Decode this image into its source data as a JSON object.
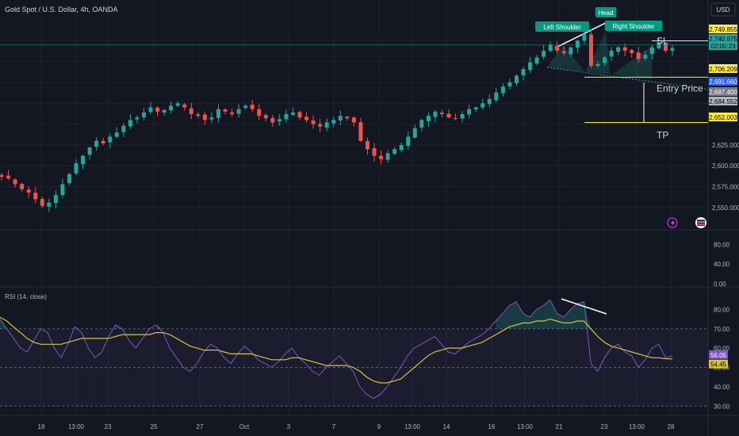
{
  "header": {
    "symbol_title": "Gold Spot / U.S. Dollar, 4h, OANDA",
    "currency_button": "USD"
  },
  "colors": {
    "background": "#131722",
    "up": "#26a69a",
    "down": "#ef5350",
    "grid": "#1e222d",
    "annotation": "#ffeb3b",
    "rsi_line": "#7e57c2",
    "rsi_ma": "#d4c53a",
    "label_green": "#089981"
  },
  "chart_data": [
    {
      "type": "candlestick",
      "title": "Gold Spot / U.S. Dollar, 4h, OANDA",
      "ylim": [
        2528,
        2775
      ],
      "yticks": [
        2550,
        2575,
        2600,
        2625
      ],
      "x_tick_labels": [
        "18",
        "13:00",
        "23",
        "25",
        "27",
        "Oct",
        "3",
        "7",
        "9",
        "13:00",
        "14",
        "16",
        "13:00",
        "21",
        "23",
        "13:00",
        "28"
      ],
      "approx_close_path": [
        2587,
        2585,
        2578,
        2572,
        2568,
        2560,
        2552,
        2556,
        2565,
        2578,
        2590,
        2603,
        2612,
        2622,
        2630,
        2627,
        2635,
        2640,
        2648,
        2655,
        2658,
        2664,
        2670,
        2665,
        2667,
        2672,
        2675,
        2670,
        2662,
        2660,
        2655,
        2658,
        2668,
        2665,
        2662,
        2668,
        2672,
        2668,
        2660,
        2657,
        2652,
        2656,
        2662,
        2664,
        2658,
        2655,
        2650,
        2647,
        2652,
        2655,
        2660,
        2657,
        2652,
        2630,
        2620,
        2612,
        2608,
        2615,
        2620,
        2625,
        2635,
        2645,
        2655,
        2660,
        2665,
        2662,
        2658,
        2657,
        2662,
        2668,
        2670,
        2675,
        2680,
        2688,
        2695,
        2700,
        2708,
        2716,
        2724,
        2730,
        2738,
        2745,
        2738,
        2735,
        2742,
        2750,
        2758,
        2720,
        2722,
        2730,
        2738,
        2742,
        2738,
        2735,
        2728,
        2733,
        2742,
        2748,
        2738,
        2741
      ],
      "price_labels": [
        {
          "label": "SL",
          "value": 2749.855,
          "text": "2,749.855"
        },
        {
          "label": "current",
          "value": 2740.675,
          "text": "2,740.675",
          "countdown": "02:00:23"
        },
        {
          "label": "Entry Price",
          "value": 2706.209,
          "text": "2,706.209"
        },
        {
          "label": "neckline",
          "value": 2691.66,
          "text": "2,691.660"
        },
        {
          "label": "",
          "value": 2687.4,
          "text": "2,687.400"
        },
        {
          "label": "",
          "value": 2684.552,
          "text": "2,684.552"
        },
        {
          "label": "TP",
          "value": 2652.003,
          "text": "2,652.003"
        }
      ],
      "annotations": [
        {
          "text": "Left Shoulder"
        },
        {
          "text": "Head"
        },
        {
          "text": "Right Shoulder"
        },
        {
          "text": "SL"
        },
        {
          "text": "Entry Price"
        },
        {
          "text": "TP"
        }
      ]
    },
    {
      "type": "line",
      "title": "",
      "ylim": [
        0,
        100
      ],
      "yticks": [
        0,
        40,
        80
      ],
      "ytick_labels": [
        "0.00",
        "40.00",
        "80.00"
      ]
    },
    {
      "type": "line",
      "title": "RSI (14, close)",
      "ylim": [
        26,
        90
      ],
      "yticks": [
        30,
        40,
        50,
        60,
        70,
        80
      ],
      "ytick_labels": [
        "30.00",
        "40.00",
        "50.00",
        "60.00",
        "70.00",
        "80.00"
      ],
      "bands": {
        "upper": 70,
        "middle": 50,
        "lower": 30
      },
      "last_values": {
        "rsi": "56.05",
        "rsi_ma": "54.45"
      },
      "series": [
        {
          "name": "RSI",
          "values": [
            75,
            70,
            65,
            60,
            58,
            64,
            70,
            68,
            60,
            55,
            62,
            71,
            68,
            60,
            55,
            58,
            66,
            72,
            70,
            64,
            60,
            65,
            70,
            72,
            68,
            60,
            55,
            50,
            48,
            52,
            58,
            62,
            60,
            55,
            52,
            57,
            61,
            58,
            54,
            52,
            50,
            53,
            57,
            60,
            55,
            52,
            48,
            46,
            50,
            53,
            56,
            52,
            48,
            40,
            36,
            34,
            36,
            40,
            45,
            50,
            56,
            60,
            62,
            64,
            66,
            62,
            58,
            57,
            60,
            63,
            65,
            67,
            70,
            74,
            78,
            82,
            84,
            78,
            76,
            80,
            82,
            85,
            78,
            76,
            80,
            83,
            84,
            52,
            48,
            55,
            60,
            62,
            58,
            56,
            50,
            54,
            60,
            62,
            55,
            56
          ]
        },
        {
          "name": "MA",
          "values": [
            76,
            74,
            71,
            68,
            65,
            63,
            62,
            62,
            62,
            62,
            63,
            64,
            65,
            65,
            65,
            65,
            65,
            66,
            67,
            67,
            67,
            67,
            67,
            68,
            68,
            67,
            65,
            63,
            61,
            60,
            59,
            59,
            59,
            58,
            57,
            57,
            57,
            57,
            56,
            55,
            54,
            54,
            54,
            55,
            55,
            54,
            53,
            52,
            51,
            51,
            51,
            51,
            50,
            48,
            45,
            43,
            42,
            42,
            43,
            44,
            47,
            50,
            53,
            56,
            58,
            59,
            60,
            60,
            60,
            61,
            62,
            63,
            65,
            67,
            69,
            71,
            72,
            73,
            73,
            74,
            74,
            75,
            74,
            73,
            73,
            74,
            74,
            70,
            66,
            63,
            61,
            60,
            59,
            58,
            57,
            56,
            55,
            55,
            54.5,
            54.45
          ]
        }
      ]
    }
  ]
}
